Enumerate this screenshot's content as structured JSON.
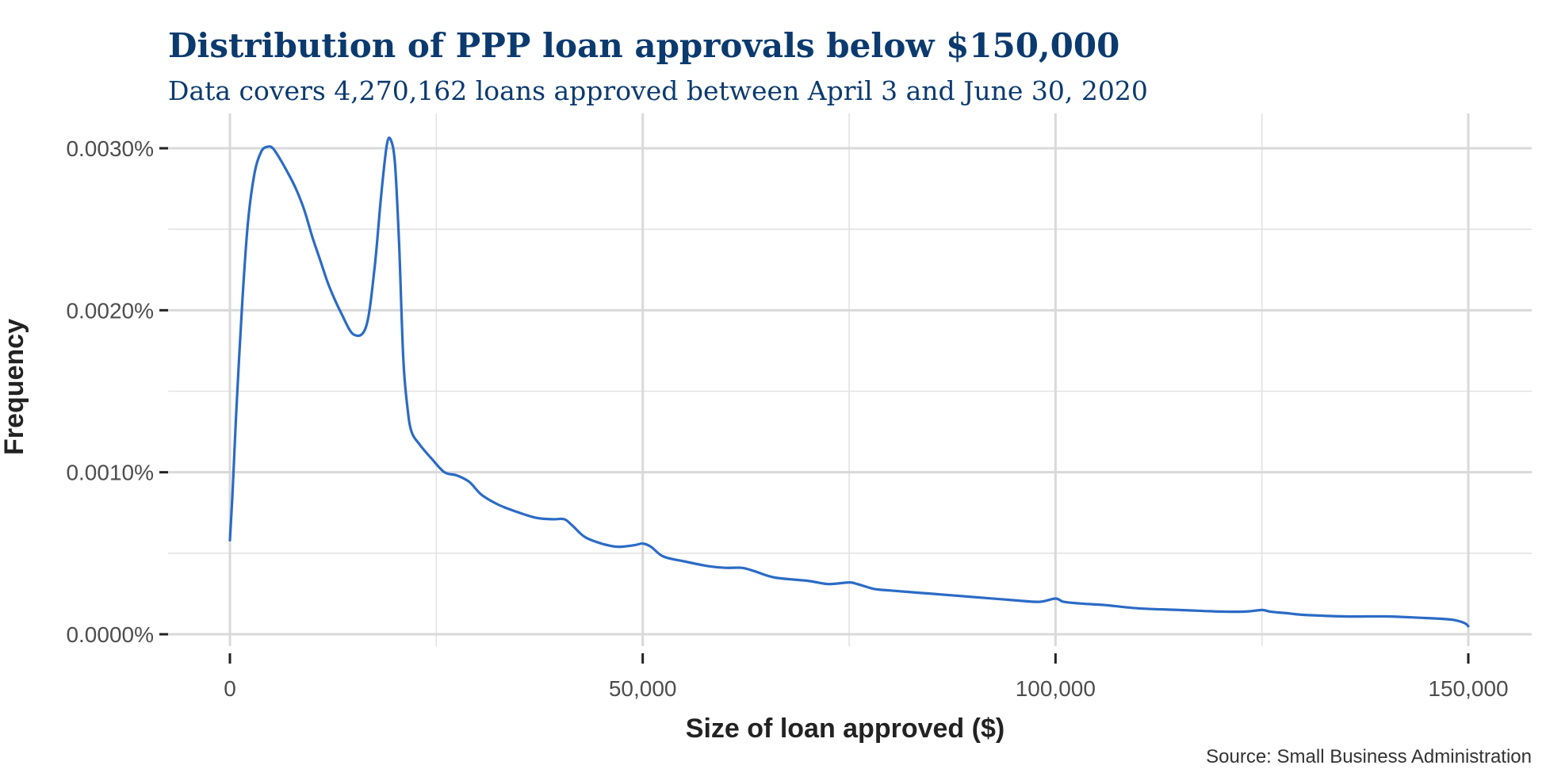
{
  "chart_data": {
    "type": "area",
    "title": "Distribution of PPP loan approvals below $150,000",
    "subtitle": "Data covers 4,270,162 loans approved between April 3 and June 30, 2020",
    "xlabel": "Size of loan approved ($)",
    "ylabel": "Frequency",
    "caption": "Source: Small Business Administration",
    "xlim": [
      0,
      150000
    ],
    "ylim": [
      0,
      3e-05
    ],
    "x_ticks": [
      {
        "value": 0,
        "label": "0"
      },
      {
        "value": 50000,
        "label": "50,000"
      },
      {
        "value": 100000,
        "label": "100,000"
      },
      {
        "value": 150000,
        "label": "150,000"
      }
    ],
    "y_ticks": [
      {
        "value": 0,
        "label": "0.0000%"
      },
      {
        "value": 1e-05,
        "label": "0.0010%"
      },
      {
        "value": 2e-05,
        "label": "0.0020%"
      },
      {
        "value": 3e-05,
        "label": "0.0030%"
      }
    ],
    "grid": true,
    "line_color": "#2b6bc5",
    "title_color": "#0b3a6e",
    "series": [
      {
        "x": [
          0,
          300,
          800,
          1500,
          2200,
          3000,
          3800,
          4600,
          5200,
          6000,
          7000,
          8000,
          9000,
          10000,
          11000,
          12000,
          13500,
          15000,
          16500,
          17500,
          18300,
          19000,
          19500,
          20000,
          20500,
          21000,
          21500,
          22000,
          23000,
          24500,
          26000,
          27500,
          29000,
          30500,
          32500,
          34500,
          37000,
          39000,
          40500,
          41500,
          43000,
          45000,
          47000,
          49000,
          50000,
          51000,
          52500,
          55000,
          58000,
          60000,
          62000,
          63500,
          66000,
          70000,
          72500,
          75000,
          76000,
          78000,
          80000,
          85000,
          90000,
          95000,
          98000,
          100000,
          101000,
          103000,
          106000,
          110000,
          115000,
          120000,
          123000,
          125000,
          126000,
          128000,
          130000,
          135000,
          140000,
          145000,
          148000,
          149500,
          150000
        ],
        "y": [
          5.8e-06,
          8.5e-06,
          1.4e-05,
          2.05e-05,
          2.55e-05,
          2.85e-05,
          2.98e-05,
          3.01e-05,
          3e-05,
          2.94e-05,
          2.85e-05,
          2.75e-05,
          2.62e-05,
          2.45e-05,
          2.3e-05,
          2.15e-05,
          1.98e-05,
          1.85e-05,
          1.9e-05,
          2.25e-05,
          2.7e-05,
          3.02e-05,
          3.05e-05,
          2.9e-05,
          2.4e-05,
          1.7e-05,
          1.4e-05,
          1.25e-05,
          1.17e-05,
          1.08e-05,
          1e-05,
          9.8e-06,
          9.4e-06,
          8.6e-06,
          8e-06,
          7.6e-06,
          7.2e-06,
          7.1e-06,
          7.1e-06,
          6.7e-06,
          6e-06,
          5.6e-06,
          5.4e-06,
          5.5e-06,
          5.6e-06,
          5.4e-06,
          4.8e-06,
          4.5e-06,
          4.2e-06,
          4.1e-06,
          4.1e-06,
          3.9e-06,
          3.5e-06,
          3.3e-06,
          3.1e-06,
          3.2e-06,
          3.1e-06,
          2.8e-06,
          2.7e-06,
          2.5e-06,
          2.3e-06,
          2.1e-06,
          2e-06,
          2.2e-06,
          2e-06,
          1.9e-06,
          1.8e-06,
          1.6e-06,
          1.5e-06,
          1.4e-06,
          1.4e-06,
          1.5e-06,
          1.4e-06,
          1.3e-06,
          1.2e-06,
          1.1e-06,
          1.1e-06,
          1e-06,
          9e-07,
          7e-07,
          5e-07
        ]
      }
    ]
  }
}
